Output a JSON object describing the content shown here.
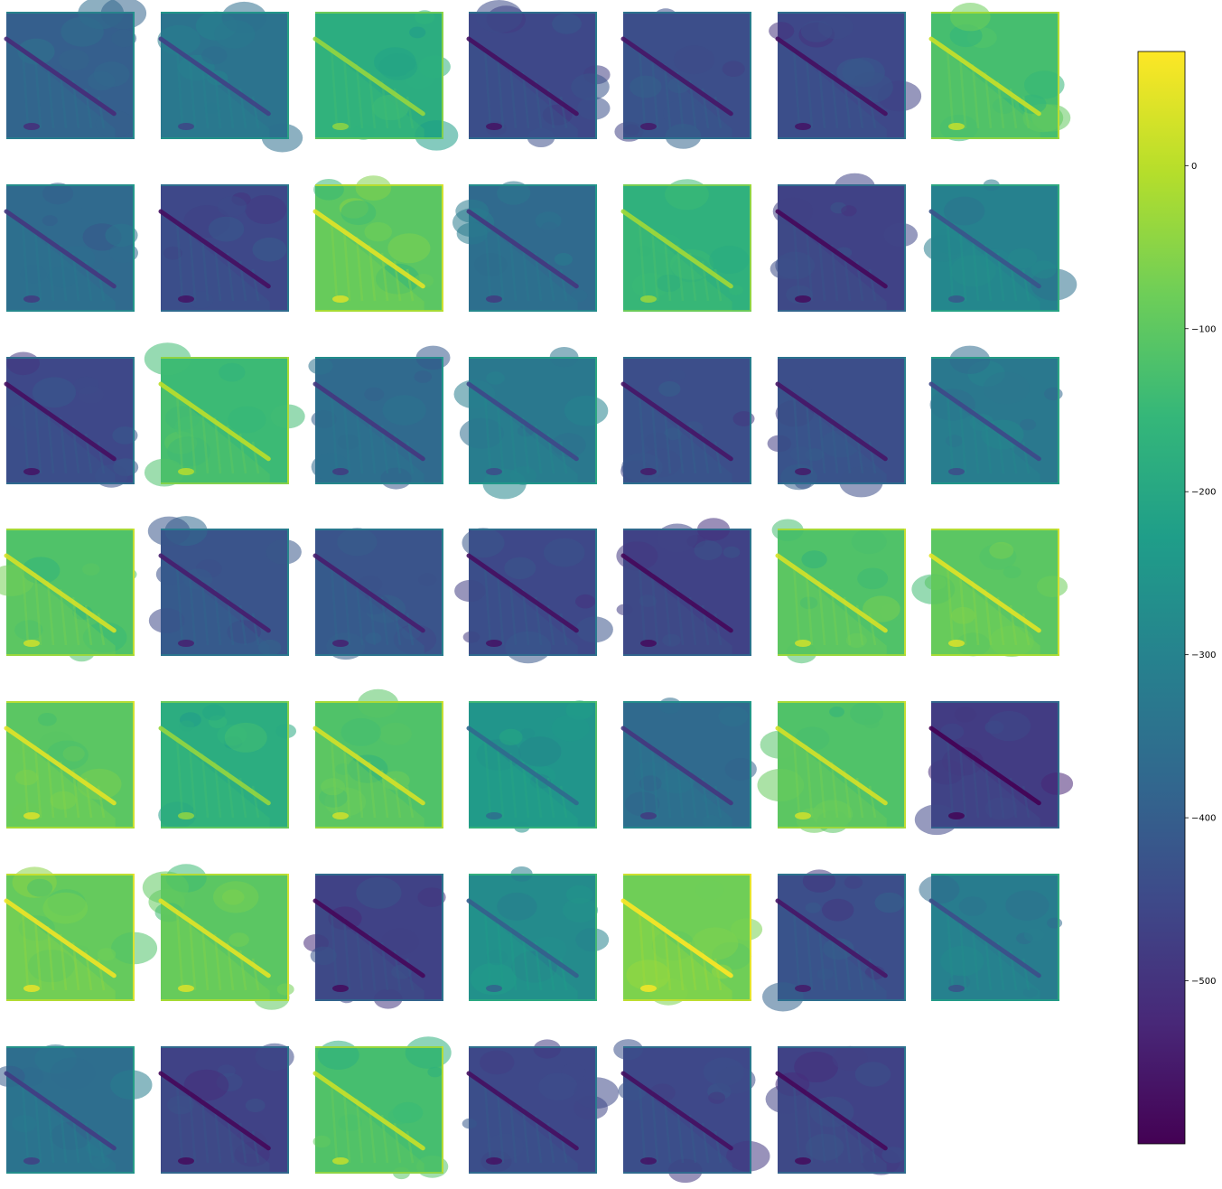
{
  "chart_data": {
    "type": "heatmap",
    "layout": {
      "rows": 7,
      "cols": 7,
      "panels": 48
    },
    "panel_levels": [
      0.3,
      0.38,
      0.62,
      0.22,
      0.24,
      0.22,
      0.7,
      0.34,
      0.22,
      0.74,
      0.34,
      0.64,
      0.2,
      0.44,
      0.22,
      0.68,
      0.34,
      0.4,
      0.24,
      0.24,
      0.4,
      0.72,
      0.26,
      0.26,
      0.22,
      0.2,
      0.72,
      0.74,
      0.74,
      0.62,
      0.72,
      0.52,
      0.34,
      0.72,
      0.18,
      0.76,
      0.74,
      0.2,
      0.48,
      0.78,
      0.24,
      0.42,
      0.36,
      0.2,
      0.7,
      0.22,
      0.22,
      0.2
    ],
    "colormap": "viridis",
    "colormap_stops": [
      "#440154",
      "#482878",
      "#3e4989",
      "#31688e",
      "#26828e",
      "#1f9e89",
      "#35b779",
      "#6ece58",
      "#b5de2b",
      "#fde725"
    ],
    "colorbar": {
      "vmin": -600,
      "vmax": 70,
      "ticks": [
        0,
        -100,
        -200,
        -300,
        -400,
        -500
      ],
      "tick_labels": [
        "0",
        "−100",
        "−200",
        "−300",
        "−400",
        "−500"
      ]
    }
  }
}
